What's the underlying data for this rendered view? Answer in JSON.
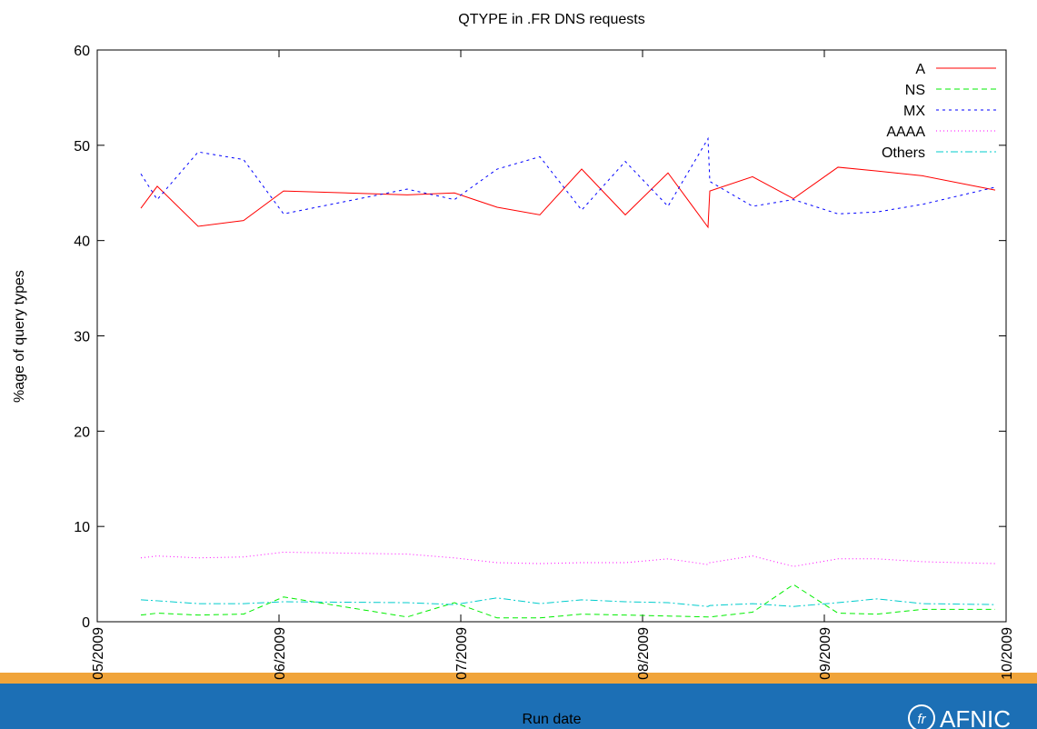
{
  "chart_data": {
    "type": "line",
    "title": "QTYPE in .FR DNS requests",
    "x_label": "Run date",
    "y_label": "%age of query types",
    "x": [
      5.24,
      5.33,
      5.555,
      5.805,
      6.025,
      6.705,
      6.965,
      7.2,
      7.435,
      7.665,
      7.905,
      8.14,
      8.36,
      8.37,
      8.605,
      8.83,
      9.075,
      9.29,
      9.54,
      9.94
    ],
    "xlim": [
      5,
      10
    ],
    "xticks": [
      {
        "value": 5,
        "label": "05/2009"
      },
      {
        "value": 6,
        "label": "06/2009"
      },
      {
        "value": 7,
        "label": "07/2009"
      },
      {
        "value": 8,
        "label": "08/2009"
      },
      {
        "value": 9,
        "label": "09/2009"
      },
      {
        "value": 10,
        "label": "10/2009"
      }
    ],
    "ylim": [
      0,
      60
    ],
    "yticks": [
      0,
      10,
      20,
      30,
      40,
      50,
      60
    ],
    "legend": "top-right",
    "series": [
      {
        "name": "A",
        "color": "#ff0000",
        "values": [
          43.4,
          45.7,
          41.5,
          42.1,
          45.2,
          44.8,
          45.0,
          43.5,
          42.7,
          47.5,
          42.7,
          47.1,
          41.4,
          45.2,
          46.7,
          44.4,
          47.7,
          47.3,
          46.8,
          45.3
        ]
      },
      {
        "name": "NS",
        "color": "#00ee00",
        "values": [
          0.7,
          0.9,
          0.7,
          0.8,
          2.6,
          0.5,
          2.0,
          0.4,
          0.4,
          0.8,
          0.7,
          0.6,
          0.5,
          0.5,
          1.0,
          3.9,
          0.9,
          0.8,
          1.3,
          1.3
        ]
      },
      {
        "name": "MX",
        "color": "#0000ff",
        "values": [
          47.0,
          44.3,
          49.3,
          48.5,
          42.8,
          45.4,
          44.3,
          47.5,
          48.8,
          43.2,
          48.3,
          43.6,
          50.7,
          46.2,
          43.6,
          44.3,
          42.8,
          43.0,
          43.8,
          45.6
        ]
      },
      {
        "name": "AAAA",
        "color": "#ff00ff",
        "values": [
          6.7,
          6.9,
          6.7,
          6.8,
          7.3,
          7.1,
          6.7,
          6.2,
          6.1,
          6.2,
          6.2,
          6.6,
          6.0,
          6.2,
          6.9,
          5.8,
          6.6,
          6.6,
          6.3,
          6.1
        ]
      },
      {
        "name": "Others",
        "color": "#00cccc",
        "values": [
          2.3,
          2.2,
          1.9,
          1.9,
          2.1,
          2.0,
          1.8,
          2.5,
          1.9,
          2.3,
          2.1,
          2.0,
          1.6,
          1.7,
          1.9,
          1.6,
          2.0,
          2.4,
          1.9,
          1.8
        ]
      }
    ]
  },
  "banner": {
    "logo_mark": "fr",
    "logo_text": "AFNIC"
  }
}
